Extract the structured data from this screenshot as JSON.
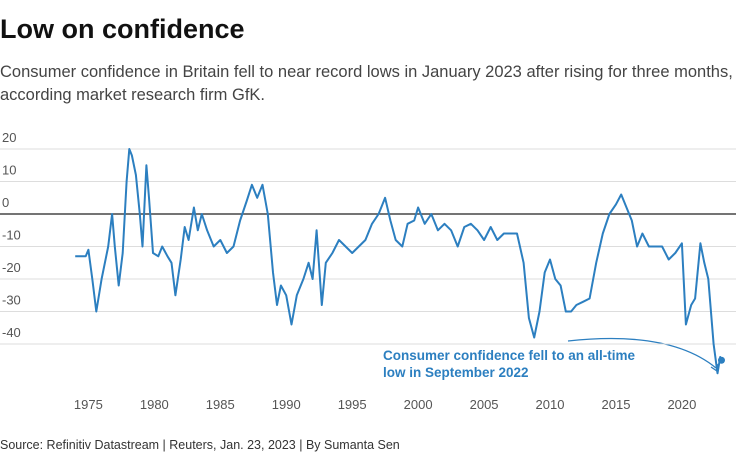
{
  "chart_data": {
    "type": "line",
    "title": "Low on confidence",
    "subtitle_lines": [
      "Consumer confidence in Britain fell to near record lows in January 2023 after rising for three months,",
      "according market research firm GfK."
    ],
    "annotation_lines": [
      "Consumer confidence fell to an all-time",
      "low in September 2022"
    ],
    "source": "Source: Refinitiv Datastream | Reuters, Jan. 23, 2023 | By Sumanta Sen",
    "color": "#2c7fc0",
    "xlim": [
      1968.3,
      2024.1
    ],
    "xticks": [
      1975,
      1980,
      1985,
      1990,
      1995,
      2000,
      2005,
      2010,
      2015,
      2020
    ],
    "ylim": [
      -50,
      25
    ],
    "yticks": [
      20,
      10,
      0,
      -10,
      -20,
      -30,
      -40
    ],
    "grid": true,
    "x": [
      1974.0,
      1974.8,
      1975.0,
      1975.3,
      1975.6,
      1976.0,
      1976.5,
      1976.8,
      1977.0,
      1977.3,
      1977.6,
      1977.9,
      1978.1,
      1978.3,
      1978.6,
      1978.9,
      1979.1,
      1979.4,
      1979.6,
      1979.9,
      1980.3,
      1980.6,
      1981.0,
      1981.3,
      1981.6,
      1982.0,
      1982.3,
      1982.6,
      1983.0,
      1983.3,
      1983.6,
      1984.0,
      1984.5,
      1985.0,
      1985.5,
      1986.0,
      1986.5,
      1987.0,
      1987.4,
      1987.8,
      1988.2,
      1988.6,
      1989.0,
      1989.3,
      1989.6,
      1990.0,
      1990.4,
      1990.8,
      1991.3,
      1991.7,
      1992.0,
      1992.3,
      1992.7,
      1993.0,
      1993.5,
      1994.0,
      1994.5,
      1995.0,
      1995.5,
      1996.0,
      1996.5,
      1997.0,
      1997.5,
      1997.9,
      1998.3,
      1998.8,
      1999.2,
      1999.7,
      2000.0,
      2000.5,
      2001.0,
      2001.5,
      2002.0,
      2002.5,
      2003.0,
      2003.5,
      2004.0,
      2004.5,
      2005.0,
      2005.5,
      2006.0,
      2006.5,
      2007.0,
      2007.5,
      2008.0,
      2008.4,
      2008.8,
      2009.2,
      2009.6,
      2010.0,
      2010.4,
      2010.8,
      2011.2,
      2011.6,
      2012.0,
      2012.5,
      2013.0,
      2013.5,
      2014.0,
      2014.5,
      2015.0,
      2015.4,
      2015.8,
      2016.2,
      2016.6,
      2017.0,
      2017.5,
      2018.0,
      2018.5,
      2019.0,
      2019.5,
      2020.0,
      2020.3,
      2020.7,
      2021.0,
      2021.4,
      2021.7,
      2022.0,
      2022.4,
      2022.7,
      2022.9,
      2023.0
    ],
    "values": [
      -13,
      -13,
      -11,
      -20,
      -30,
      -20,
      -10,
      0,
      -10,
      -22,
      -12,
      10,
      20,
      18,
      12,
      0,
      -10,
      15,
      5,
      -12,
      -13,
      -10,
      -13,
      -15,
      -25,
      -14,
      -4,
      -8,
      2,
      -5,
      0,
      -5,
      -10,
      -8,
      -12,
      -10,
      -2,
      4,
      9,
      5,
      9,
      0,
      -18,
      -28,
      -22,
      -25,
      -34,
      -25,
      -20,
      -15,
      -20,
      -5,
      -28,
      -15,
      -12,
      -8,
      -10,
      -12,
      -10,
      -8,
      -3,
      0,
      5,
      -2,
      -8,
      -10,
      -3,
      -2,
      2,
      -3,
      0,
      -5,
      -3,
      -5,
      -10,
      -4,
      -3,
      -5,
      -8,
      -4,
      -8,
      -6,
      -6,
      -6,
      -15,
      -32,
      -38,
      -30,
      -18,
      -14,
      -20,
      -22,
      -30,
      -30,
      -28,
      -27,
      -26,
      -15,
      -6,
      0,
      3,
      6,
      2,
      -2,
      -10,
      -6,
      -10,
      -10,
      -10,
      -14,
      -12,
      -9,
      -34,
      -28,
      -26,
      -9,
      -15,
      -20,
      -40,
      -49,
      -44,
      -45
    ]
  }
}
